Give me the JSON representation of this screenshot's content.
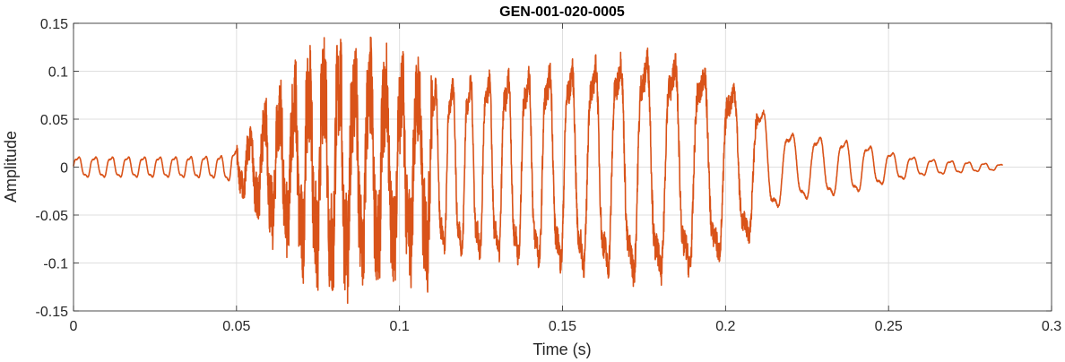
{
  "chart_data": {
    "type": "line",
    "title": "GEN-001-020-0005",
    "xlabel": "Time (s)",
    "ylabel": "Amplitude",
    "xlim": [
      0,
      0.3
    ],
    "ylim": [
      -0.15,
      0.15
    ],
    "xticks": [
      0,
      0.05,
      0.1,
      0.15,
      0.2,
      0.25,
      0.3
    ],
    "xtick_labels": [
      "0",
      "0.05",
      "0.1",
      "0.15",
      "0.2",
      "0.25",
      "0.3"
    ],
    "yticks": [
      -0.15,
      -0.1,
      -0.05,
      0,
      0.05,
      0.1,
      0.15
    ],
    "ytick_labels": [
      "-0.15",
      "-0.1",
      "-0.05",
      "0",
      "0.05",
      "0.1",
      "0.15"
    ],
    "grid": true,
    "box": true,
    "series": [
      {
        "color": "#D95319",
        "duration": 0.285,
        "envelope": {
          "t": [
            0,
            0.01,
            0.03,
            0.045,
            0.05,
            0.055,
            0.06,
            0.07,
            0.08,
            0.09,
            0.1,
            0.12,
            0.14,
            0.16,
            0.175,
            0.19,
            0.2,
            0.21,
            0.215,
            0.22,
            0.24,
            0.25,
            0.26,
            0.285
          ],
          "amp": [
            0.012,
            0.012,
            0.012,
            0.013,
            0.02,
            0.035,
            0.06,
            0.09,
            0.11,
            0.1,
            0.09,
            0.1,
            0.11,
            0.12,
            0.13,
            0.12,
            0.1,
            0.075,
            0.05,
            0.04,
            0.03,
            0.018,
            0.01,
            0.003
          ]
        }
      }
    ]
  }
}
